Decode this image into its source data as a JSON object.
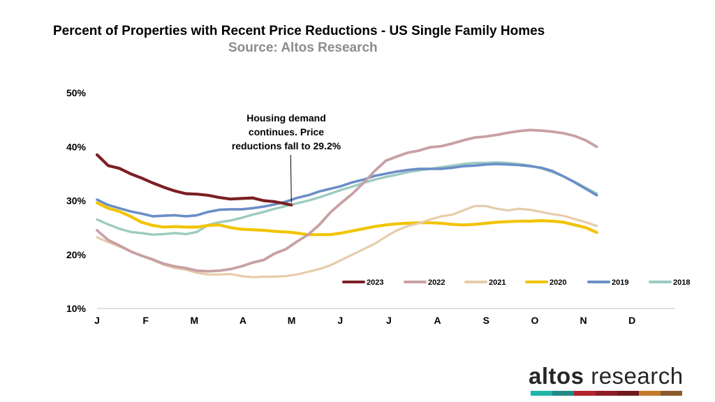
{
  "header": {
    "title": "Percent of Properties with Recent Price Reductions - US Single Family Homes",
    "subtitle": "Source: Altos Research"
  },
  "brand": {
    "word1": "altos",
    "word2": " research",
    "stripe_colors": [
      "#1fb5a9",
      "#1f8a86",
      "#b5232c",
      "#8e1c24",
      "#6f1a1d",
      "#c47a2c",
      "#8a5a2b"
    ]
  },
  "chart_data": {
    "type": "line",
    "title": "Percent of Properties with Recent Price Reductions - US Single Family Homes",
    "subtitle": "Source: Altos Research",
    "xlabel": "",
    "ylabel": "",
    "ylim": [
      10,
      50
    ],
    "yticks": [
      10,
      20,
      30,
      40,
      50
    ],
    "ytick_labels": [
      "10%",
      "20%",
      "30%",
      "40%",
      "50%"
    ],
    "xlim": [
      0,
      52
    ],
    "x_ticks": [
      {
        "label": "J",
        "x": 0
      },
      {
        "label": "F",
        "x": 4.38
      },
      {
        "label": "M",
        "x": 8.76
      },
      {
        "label": "A",
        "x": 13.14
      },
      {
        "label": "M",
        "x": 17.52
      },
      {
        "label": "J",
        "x": 21.9
      },
      {
        "label": "J",
        "x": 26.28
      },
      {
        "label": "A",
        "x": 30.66
      },
      {
        "label": "S",
        "x": 35.04
      },
      {
        "label": "O",
        "x": 39.42
      },
      {
        "label": "N",
        "x": 43.8
      },
      {
        "label": "D",
        "x": 48.18
      }
    ],
    "legend_position": "bottom-right",
    "annotation": {
      "lines": [
        "Housing demand",
        "continues. Price",
        "reductions fall to 29.2%"
      ],
      "x": 17.5,
      "y": 29.2
    },
    "series": [
      {
        "name": "2023",
        "color": "#7b1f24",
        "width": 4.2,
        "points": [
          [
            0,
            38.5
          ],
          [
            1,
            36.5
          ],
          [
            2,
            36
          ],
          [
            3,
            35
          ],
          [
            4,
            34.2
          ],
          [
            5,
            33.3
          ],
          [
            6,
            32.5
          ],
          [
            7,
            31.8
          ],
          [
            8,
            31.3
          ],
          [
            9,
            31.2
          ],
          [
            10,
            31
          ],
          [
            11,
            30.6
          ],
          [
            12,
            30.3
          ],
          [
            13,
            30.4
          ],
          [
            14,
            30.5
          ],
          [
            15,
            30
          ],
          [
            16,
            29.8
          ],
          [
            17,
            29.4
          ],
          [
            17.5,
            29.2
          ]
        ]
      },
      {
        "name": "2022",
        "color": "#c8a0a3",
        "width": 3.8,
        "points": [
          [
            0,
            24.5
          ],
          [
            1,
            22.7
          ],
          [
            2,
            21.7
          ],
          [
            3,
            20.6
          ],
          [
            4,
            19.8
          ],
          [
            5,
            19.1
          ],
          [
            6,
            18.3
          ],
          [
            7,
            17.8
          ],
          [
            8,
            17.5
          ],
          [
            9,
            17
          ],
          [
            10,
            16.9
          ],
          [
            11,
            17
          ],
          [
            12,
            17.3
          ],
          [
            13,
            17.8
          ],
          [
            14,
            18.5
          ],
          [
            15,
            19
          ],
          [
            16,
            20.2
          ],
          [
            17,
            21
          ],
          [
            18,
            22.4
          ],
          [
            19,
            23.7
          ],
          [
            20,
            25.5
          ],
          [
            21,
            27.8
          ],
          [
            22,
            29.6
          ],
          [
            23,
            31.3
          ],
          [
            24,
            33.3
          ],
          [
            25,
            35.5
          ],
          [
            26,
            37.4
          ],
          [
            27,
            38.2
          ],
          [
            28,
            38.9
          ],
          [
            29,
            39.3
          ],
          [
            30,
            39.9
          ],
          [
            31,
            40.1
          ],
          [
            32,
            40.6
          ],
          [
            33,
            41.2
          ],
          [
            34,
            41.7
          ],
          [
            35,
            41.9
          ],
          [
            36,
            42.2
          ],
          [
            37,
            42.6
          ],
          [
            38,
            42.9
          ],
          [
            39,
            43.1
          ],
          [
            40,
            43
          ],
          [
            41,
            42.8
          ],
          [
            42,
            42.5
          ],
          [
            43,
            42
          ],
          [
            44,
            41.2
          ],
          [
            45,
            40
          ]
        ]
      },
      {
        "name": "2021",
        "color": "#e6ccaa",
        "width": 3.2,
        "points": [
          [
            0,
            23.2
          ],
          [
            1,
            22.3
          ],
          [
            2,
            21.5
          ],
          [
            3,
            20.6
          ],
          [
            4,
            19.8
          ],
          [
            5,
            19
          ],
          [
            6,
            18.1
          ],
          [
            7,
            17.5
          ],
          [
            8,
            17.2
          ],
          [
            9,
            16.6
          ],
          [
            10,
            16.3
          ],
          [
            11,
            16.3
          ],
          [
            12,
            16.4
          ],
          [
            13,
            16
          ],
          [
            14,
            15.8
          ],
          [
            15,
            15.9
          ],
          [
            16,
            15.9
          ],
          [
            17,
            16
          ],
          [
            18,
            16.3
          ],
          [
            19,
            16.8
          ],
          [
            20,
            17.3
          ],
          [
            21,
            18
          ],
          [
            22,
            19
          ],
          [
            23,
            20
          ],
          [
            24,
            21
          ],
          [
            25,
            22
          ],
          [
            26,
            23.3
          ],
          [
            27,
            24.5
          ],
          [
            28,
            25.3
          ],
          [
            29,
            25.8
          ],
          [
            30,
            26.5
          ],
          [
            31,
            27.1
          ],
          [
            32,
            27.4
          ],
          [
            33,
            28.2
          ],
          [
            34,
            29
          ],
          [
            35,
            29
          ],
          [
            36,
            28.5
          ],
          [
            37,
            28.2
          ],
          [
            38,
            28.5
          ],
          [
            39,
            28.3
          ],
          [
            40,
            27.9
          ],
          [
            41,
            27.5
          ],
          [
            42,
            27.2
          ],
          [
            43,
            26.6
          ],
          [
            44,
            26
          ],
          [
            45,
            25.3
          ]
        ]
      },
      {
        "name": "2020",
        "color": "#f2c400",
        "width": 4.2,
        "points": [
          [
            0,
            29.6
          ],
          [
            1,
            28.6
          ],
          [
            2,
            28
          ],
          [
            3,
            27.1
          ],
          [
            4,
            26
          ],
          [
            5,
            25.4
          ],
          [
            6,
            25.1
          ],
          [
            7,
            25.2
          ],
          [
            8,
            25.1
          ],
          [
            9,
            25.1
          ],
          [
            10,
            25.4
          ],
          [
            11,
            25.5
          ],
          [
            12,
            25
          ],
          [
            13,
            24.7
          ],
          [
            14,
            24.6
          ],
          [
            15,
            24.5
          ],
          [
            16,
            24.3
          ],
          [
            17,
            24.2
          ],
          [
            18,
            24
          ],
          [
            19,
            23.7
          ],
          [
            20,
            23.7
          ],
          [
            21,
            23.7
          ],
          [
            22,
            24
          ],
          [
            23,
            24.4
          ],
          [
            24,
            24.8
          ],
          [
            25,
            25.2
          ],
          [
            26,
            25.5
          ],
          [
            27,
            25.7
          ],
          [
            28,
            25.8
          ],
          [
            29,
            25.9
          ],
          [
            30,
            25.9
          ],
          [
            31,
            25.8
          ],
          [
            32,
            25.6
          ],
          [
            33,
            25.5
          ],
          [
            34,
            25.6
          ],
          [
            35,
            25.8
          ],
          [
            36,
            26
          ],
          [
            37,
            26.1
          ],
          [
            38,
            26.2
          ],
          [
            39,
            26.2
          ],
          [
            40,
            26.3
          ],
          [
            41,
            26.2
          ],
          [
            42,
            26
          ],
          [
            43,
            25.5
          ],
          [
            44,
            25
          ],
          [
            45,
            24.1
          ]
        ]
      },
      {
        "name": "2019",
        "color": "#6b8ec7",
        "width": 3.6,
        "points": [
          [
            0,
            30.2
          ],
          [
            1,
            29.2
          ],
          [
            2,
            28.6
          ],
          [
            3,
            28
          ],
          [
            4,
            27.6
          ],
          [
            5,
            27.1
          ],
          [
            6,
            27.2
          ],
          [
            7,
            27.3
          ],
          [
            8,
            27.1
          ],
          [
            9,
            27.3
          ],
          [
            10,
            27.9
          ],
          [
            11,
            28.3
          ],
          [
            12,
            28.4
          ],
          [
            13,
            28.4
          ],
          [
            14,
            28.6
          ],
          [
            15,
            28.9
          ],
          [
            16,
            29.3
          ],
          [
            17,
            29.8
          ],
          [
            18,
            30.5
          ],
          [
            19,
            31
          ],
          [
            20,
            31.7
          ],
          [
            21,
            32.2
          ],
          [
            22,
            32.7
          ],
          [
            23,
            33.4
          ],
          [
            24,
            33.9
          ],
          [
            25,
            34.6
          ],
          [
            26,
            35
          ],
          [
            27,
            35.4
          ],
          [
            28,
            35.7
          ],
          [
            29,
            35.9
          ],
          [
            30,
            35.9
          ],
          [
            31,
            35.9
          ],
          [
            32,
            36.1
          ],
          [
            33,
            36.4
          ],
          [
            34,
            36.5
          ],
          [
            35,
            36.7
          ],
          [
            36,
            36.8
          ],
          [
            37,
            36.7
          ],
          [
            38,
            36.6
          ],
          [
            39,
            36.4
          ],
          [
            40,
            36.1
          ],
          [
            41,
            35.5
          ],
          [
            42,
            34.5
          ],
          [
            43,
            33.4
          ],
          [
            44,
            32.2
          ],
          [
            45,
            31
          ]
        ]
      },
      {
        "name": "2018",
        "color": "#9ccbc0",
        "width": 3.4,
        "points": [
          [
            0,
            26.5
          ],
          [
            1,
            25.6
          ],
          [
            2,
            24.8
          ],
          [
            3,
            24.2
          ],
          [
            4,
            24
          ],
          [
            5,
            23.7
          ],
          [
            6,
            23.8
          ],
          [
            7,
            24
          ],
          [
            8,
            23.8
          ],
          [
            9,
            24.2
          ],
          [
            10,
            25.5
          ],
          [
            11,
            26
          ],
          [
            12,
            26.3
          ],
          [
            13,
            26.8
          ],
          [
            14,
            27.4
          ],
          [
            15,
            27.9
          ],
          [
            16,
            28.5
          ],
          [
            17,
            29
          ],
          [
            18,
            29.5
          ],
          [
            19,
            30
          ],
          [
            20,
            30.6
          ],
          [
            21,
            31.3
          ],
          [
            22,
            32
          ],
          [
            23,
            32.6
          ],
          [
            24,
            33.3
          ],
          [
            25,
            33.9
          ],
          [
            26,
            34.4
          ],
          [
            27,
            34.8
          ],
          [
            28,
            35.3
          ],
          [
            29,
            35.6
          ],
          [
            30,
            35.9
          ],
          [
            31,
            36.2
          ],
          [
            32,
            36.5
          ],
          [
            33,
            36.8
          ],
          [
            34,
            37
          ],
          [
            35,
            37
          ],
          [
            36,
            37.1
          ],
          [
            37,
            37
          ],
          [
            38,
            36.8
          ],
          [
            39,
            36.5
          ],
          [
            40,
            36
          ],
          [
            41,
            35.3
          ],
          [
            42,
            34.5
          ],
          [
            43,
            33.5
          ],
          [
            44,
            32.4
          ],
          [
            45,
            31.3
          ]
        ]
      }
    ]
  }
}
